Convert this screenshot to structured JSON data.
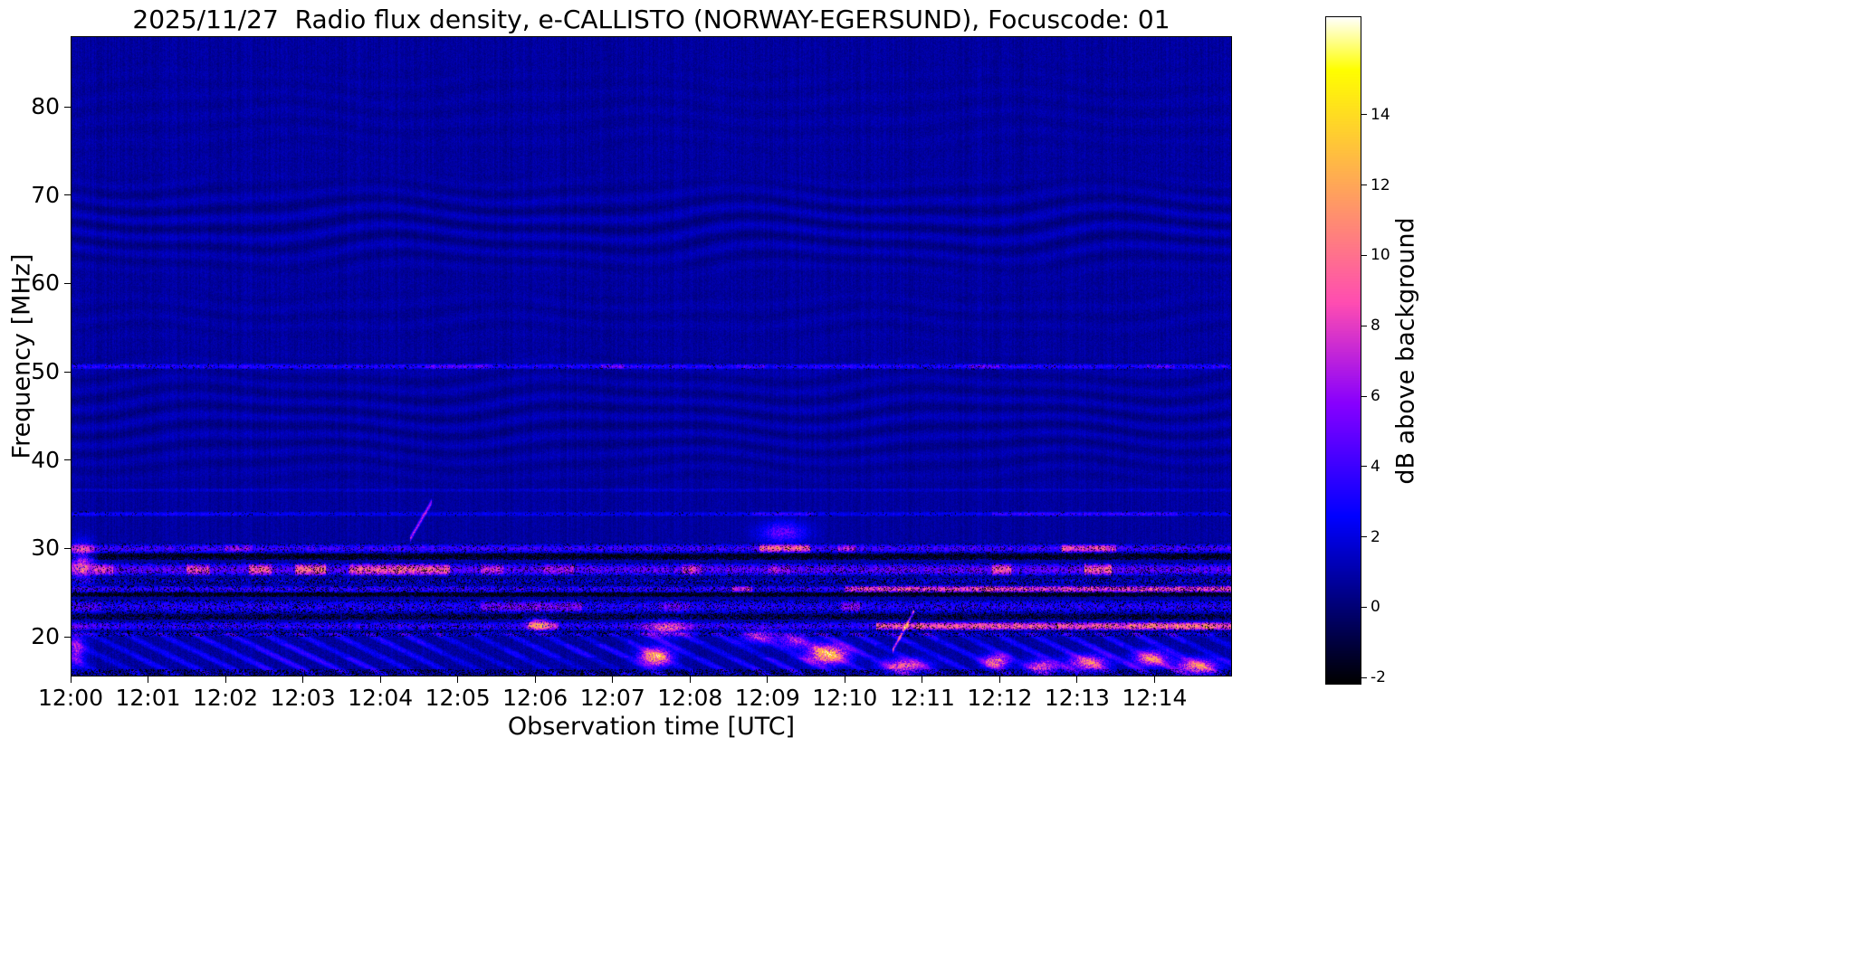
{
  "chart_data": {
    "type": "heatmap",
    "title": "2025/11/27  Radio flux density, e-CALLISTO (NORWAY-EGERSUND), Focuscode: 01",
    "xlabel": "Observation time [UTC]",
    "ylabel": "Frequency [MHz]",
    "colorbar_label": "dB above background",
    "colormap": "gnuplot2",
    "x_ticks": [
      "12:00",
      "12:01",
      "12:02",
      "12:03",
      "12:04",
      "12:05",
      "12:06",
      "12:07",
      "12:08",
      "12:09",
      "12:10",
      "12:11",
      "12:12",
      "12:13",
      "12:14"
    ],
    "x_range_min": [
      0,
      15
    ],
    "y_ticks": [
      20,
      30,
      40,
      50,
      60,
      70,
      80
    ],
    "y_range_mhz": [
      15.5,
      88
    ],
    "value_range_db": [
      -2.2,
      16.8
    ],
    "colorbar_ticks": [
      -2,
      0,
      2,
      4,
      6,
      8,
      10,
      12,
      14
    ],
    "legend": "none",
    "grid": false,
    "spectrogram": {
      "background_db": 0.75,
      "pixel_noise_db": 0.45,
      "column_noise_db": 0.3,
      "ripple_zones": [
        {
          "f0": 60,
          "f1": 73,
          "amp": 0.6,
          "fperiod": 2.1,
          "wobble": 2.2
        },
        {
          "f0": 36,
          "f1": 53,
          "amp": 0.5,
          "fperiod": 2.0,
          "wobble": 2.0
        },
        {
          "f0": 53,
          "f1": 60,
          "amp": 0.25,
          "fperiod": 2.2,
          "wobble": 1.8
        },
        {
          "f0": 73,
          "f1": 86,
          "amp": 0.18,
          "fperiod": 2.3,
          "wobble": 1.8
        }
      ],
      "swish": {
        "f0": 15.6,
        "f1": 20.4,
        "amp_db": 2.6,
        "fperiod": 1.9,
        "tperiod": 0.45
      },
      "lines": [
        {
          "f": 50.6,
          "hw": 0.35,
          "base": 1.4,
          "speckle": 2.2,
          "dropout": 0.07,
          "segments": [
            [
              4.6,
              5.4,
              1.5
            ],
            [
              6.85,
              7.15,
              1.7
            ],
            [
              8.6,
              9.0,
              1.4
            ],
            [
              11.6,
              12.0,
              1.5
            ],
            [
              13.9,
              14.25,
              1.5
            ]
          ]
        },
        {
          "f": 36.6,
          "hw": 0.25,
          "base": 0.3,
          "speckle": 0.9,
          "dropout": 0.0,
          "segments": []
        },
        {
          "f": 33.9,
          "hw": 0.3,
          "base": 0.9,
          "speckle": 1.3,
          "dropout": 0.05,
          "segments": [
            [
              0.0,
              2.2,
              1.3
            ],
            [
              8.8,
              9.6,
              1.8
            ],
            [
              11.9,
              14.3,
              2.0
            ]
          ]
        },
        {
          "f": 30.0,
          "hw": 0.55,
          "base": 1.8,
          "speckle": 2.8,
          "dropout": 0.12,
          "segments": [
            [
              0.0,
              0.3,
              1.5
            ],
            [
              2.0,
              2.35,
              1.6
            ],
            [
              8.9,
              9.55,
              2.6
            ],
            [
              9.9,
              10.15,
              1.8
            ],
            [
              12.8,
              13.5,
              2.4
            ]
          ]
        },
        {
          "f": 29.1,
          "hw": 0.35,
          "base": -2.5,
          "speckle": 1.5,
          "dropout": 0.45,
          "segments": []
        },
        {
          "f": 27.6,
          "hw": 0.8,
          "base": 2.2,
          "speckle": 3.2,
          "dropout": 0.15,
          "segments": [
            [
              0.3,
              0.55,
              1.8
            ],
            [
              1.5,
              1.8,
              2.0
            ],
            [
              2.3,
              2.6,
              2.2
            ],
            [
              2.9,
              3.3,
              2.3
            ],
            [
              3.6,
              4.9,
              2.2
            ],
            [
              5.3,
              5.6,
              1.6
            ],
            [
              6.1,
              6.5,
              1.5
            ],
            [
              7.9,
              8.15,
              1.7
            ],
            [
              9.0,
              9.3,
              1.5
            ],
            [
              11.9,
              12.15,
              2.3
            ],
            [
              13.1,
              13.45,
              2.2
            ]
          ]
        },
        {
          "f": 26.3,
          "hw": 0.4,
          "base": 0.3,
          "speckle": 1.8,
          "dropout": 0.3,
          "segments": []
        },
        {
          "f": 25.4,
          "hw": 0.45,
          "base": 1.6,
          "speckle": 2.5,
          "dropout": 0.2,
          "segments": [
            [
              8.55,
              8.8,
              2.2
            ],
            [
              10.0,
              15.0,
              2.6
            ],
            [
              11.5,
              12.0,
              2.8
            ]
          ]
        },
        {
          "f": 24.8,
          "hw": 0.25,
          "base": -2.5,
          "speckle": 1.2,
          "dropout": 0.5,
          "segments": []
        },
        {
          "f": 23.4,
          "hw": 0.8,
          "base": 1.4,
          "speckle": 2.2,
          "dropout": 0.18,
          "segments": [
            [
              0.0,
              0.4,
              1.4
            ],
            [
              5.3,
              6.6,
              1.8
            ],
            [
              7.6,
              8.0,
              1.6
            ],
            [
              9.95,
              10.2,
              1.9
            ]
          ]
        },
        {
          "f": 22.3,
          "hw": 0.3,
          "base": -1.5,
          "speckle": 1.5,
          "dropout": 0.4,
          "segments": []
        },
        {
          "f": 21.2,
          "hw": 0.55,
          "base": 1.6,
          "speckle": 2.4,
          "dropout": 0.15,
          "segments": [
            [
              0.0,
              0.5,
              1.3
            ],
            [
              5.9,
              6.3,
              1.9
            ],
            [
              10.4,
              15.0,
              2.9
            ],
            [
              13.6,
              14.75,
              3.3
            ]
          ]
        },
        {
          "f": 20.3,
          "hw": 0.3,
          "base": 0.5,
          "speckle": 1.5,
          "dropout": 0.25,
          "segments": []
        },
        {
          "f": 15.9,
          "hw": 0.45,
          "base": -1.0,
          "speckle": 2.2,
          "dropout": 0.35,
          "segments": []
        }
      ],
      "streaks": [
        {
          "t0": 4.38,
          "f0": 31.0,
          "t1": 4.66,
          "f1": 35.2,
          "width_mhz": 0.5,
          "db": 7.5
        },
        {
          "t0": 10.62,
          "f0": 18.5,
          "t1": 10.9,
          "f1": 23.0,
          "width_mhz": 0.45,
          "db": 8.5
        }
      ],
      "bursts": [
        {
          "t": 0.07,
          "f": 18.5,
          "rt": 0.12,
          "rf": 2.0,
          "db": 5
        },
        {
          "t": 0.15,
          "f": 28.5,
          "rt": 0.15,
          "rf": 2.0,
          "db": 6
        },
        {
          "t": 6.05,
          "f": 21.4,
          "rt": 0.15,
          "rf": 0.7,
          "db": 7
        },
        {
          "t": 7.55,
          "f": 17.7,
          "rt": 0.2,
          "rf": 1.0,
          "db": 11
        },
        {
          "t": 7.7,
          "f": 20.9,
          "rt": 0.3,
          "rf": 0.9,
          "db": 6
        },
        {
          "t": 8.9,
          "f": 20.0,
          "rt": 0.25,
          "rf": 0.8,
          "db": 5
        },
        {
          "t": 9.2,
          "f": 31.8,
          "rt": 0.3,
          "rf": 1.2,
          "db": 4
        },
        {
          "t": 9.35,
          "f": 19.5,
          "rt": 0.2,
          "rf": 0.8,
          "db": 5
        },
        {
          "t": 9.78,
          "f": 18.0,
          "rt": 0.26,
          "rf": 1.1,
          "db": 11
        },
        {
          "t": 10.78,
          "f": 16.7,
          "rt": 0.28,
          "rf": 0.8,
          "db": 8
        },
        {
          "t": 11.95,
          "f": 17.2,
          "rt": 0.16,
          "rf": 0.8,
          "db": 9
        },
        {
          "t": 12.55,
          "f": 16.6,
          "rt": 0.22,
          "rf": 0.8,
          "db": 7
        },
        {
          "t": 13.15,
          "f": 17.0,
          "rt": 0.25,
          "rf": 0.9,
          "db": 8
        },
        {
          "t": 13.95,
          "f": 17.5,
          "rt": 0.22,
          "rf": 0.9,
          "db": 8
        },
        {
          "t": 14.55,
          "f": 16.6,
          "rt": 0.25,
          "rf": 0.9,
          "db": 9
        }
      ]
    }
  }
}
